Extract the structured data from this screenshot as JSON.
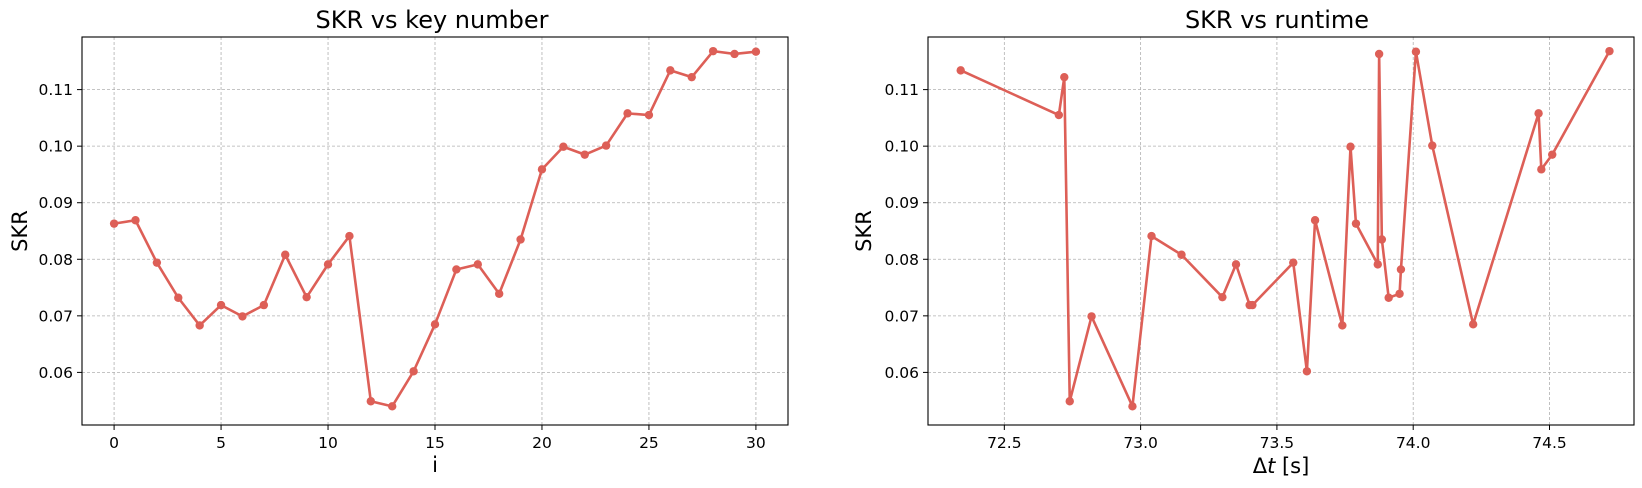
{
  "colors": {
    "series": "#dd5f57",
    "grid": "#b0b0b0",
    "axes": "#000000"
  },
  "chart_data": [
    {
      "type": "line",
      "title": "SKR vs key number",
      "xlabel": "i",
      "ylabel": "SKR",
      "xlim": [
        -1.5,
        31.5
      ],
      "ylim": [
        0.0507,
        0.1193
      ],
      "xticks": [
        0,
        5,
        10,
        15,
        20,
        25,
        30
      ],
      "xtick_labels": [
        "0",
        "5",
        "10",
        "15",
        "20",
        "25",
        "30"
      ],
      "yticks": [
        0.06,
        0.07,
        0.08,
        0.09,
        0.1,
        0.11
      ],
      "ytick_labels": [
        "0.06",
        "0.07",
        "0.08",
        "0.09",
        "0.10",
        "0.11"
      ],
      "grid": true,
      "marker": "circle",
      "series": [
        {
          "x": [
            0,
            1,
            2,
            3,
            4,
            5,
            6,
            7,
            8,
            9,
            10,
            11,
            12,
            13,
            14,
            15,
            16,
            17,
            18,
            19,
            20,
            21,
            22,
            23,
            24,
            25,
            26,
            27,
            28,
            29,
            30
          ],
          "y": [
            0.0863,
            0.0869,
            0.0794,
            0.0732,
            0.0683,
            0.0719,
            0.0699,
            0.0719,
            0.0808,
            0.0733,
            0.0791,
            0.0841,
            0.0549,
            0.054,
            0.0602,
            0.0685,
            0.0782,
            0.0791,
            0.0739,
            0.0835,
            0.0959,
            0.0999,
            0.0985,
            0.1001,
            0.1058,
            0.1055,
            0.1134,
            0.1122,
            0.1168,
            0.1163,
            0.1167
          ]
        }
      ]
    },
    {
      "type": "line",
      "title": "SKR vs runtime",
      "xlabel": "Δt [s]",
      "xlabel_math": "t",
      "ylabel": "SKR",
      "xlim": [
        72.22,
        74.81
      ],
      "ylim": [
        0.0507,
        0.1193
      ],
      "xticks": [
        72.5,
        73.0,
        73.5,
        74.0,
        74.5
      ],
      "xtick_labels": [
        "72.5",
        "73.0",
        "73.5",
        "74.0",
        "74.5"
      ],
      "yticks": [
        0.06,
        0.07,
        0.08,
        0.09,
        0.1,
        0.11
      ],
      "ytick_labels": [
        "0.06",
        "0.07",
        "0.08",
        "0.09",
        "0.10",
        "0.11"
      ],
      "grid": true,
      "marker": "circle",
      "series": [
        {
          "x": [
            72.34,
            72.7,
            72.72,
            72.74,
            72.82,
            72.97,
            73.04,
            73.15,
            73.3,
            73.35,
            73.4,
            73.41,
            73.56,
            73.61,
            73.64,
            73.74,
            73.77,
            73.79,
            73.87,
            73.875,
            73.885,
            73.91,
            73.95,
            73.955,
            74.01,
            74.07,
            74.22,
            74.46,
            74.47,
            74.51,
            74.72
          ],
          "y": [
            0.1134,
            0.1055,
            0.1122,
            0.0549,
            0.0699,
            0.054,
            0.0841,
            0.0808,
            0.0733,
            0.0791,
            0.0719,
            0.0719,
            0.0794,
            0.0602,
            0.0869,
            0.0683,
            0.0999,
            0.0863,
            0.0791,
            0.1163,
            0.0835,
            0.0732,
            0.0739,
            0.0782,
            0.1167,
            0.1001,
            0.0685,
            0.1058,
            0.0959,
            0.0985,
            0.1168
          ]
        }
      ]
    }
  ]
}
